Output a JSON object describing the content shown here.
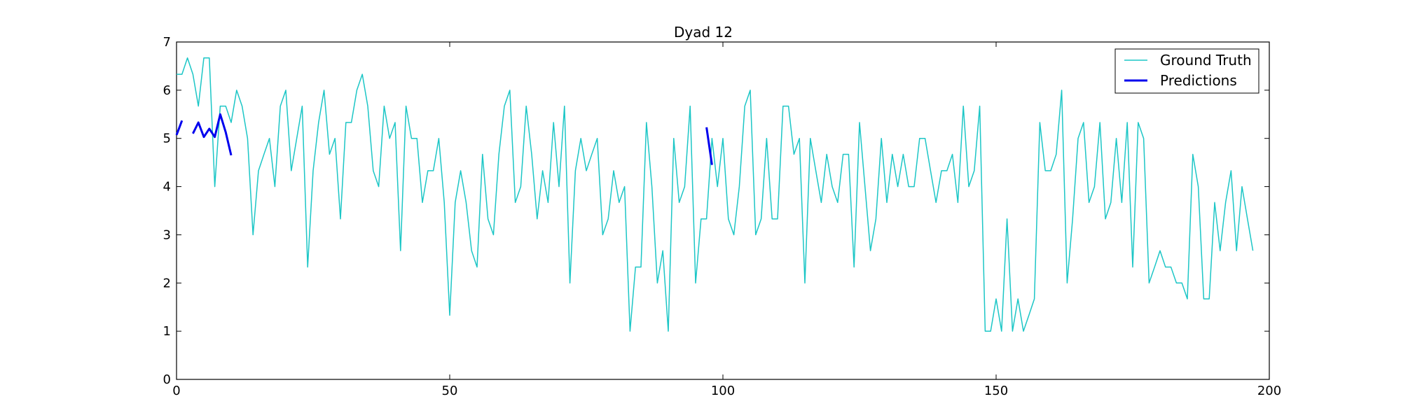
{
  "chart_data": {
    "type": "line",
    "title": "Dyad 12",
    "xlabel": "",
    "ylabel": "",
    "xlim": [
      0,
      200
    ],
    "ylim": [
      0,
      7
    ],
    "x_ticks": [
      0,
      50,
      100,
      150,
      200
    ],
    "y_ticks": [
      0,
      1,
      2,
      3,
      4,
      5,
      6,
      7
    ],
    "grid": false,
    "legend_position": "top-right",
    "series": [
      {
        "name": "Ground Truth",
        "color": "#1cc6c6",
        "line_width": "thin",
        "x": [
          0,
          1,
          2,
          3,
          4,
          5,
          6,
          7,
          8,
          9,
          10,
          11,
          12,
          13,
          14,
          15,
          16,
          17,
          18,
          19,
          20,
          21,
          22,
          23,
          24,
          25,
          26,
          27,
          28,
          29,
          30,
          31,
          32,
          33,
          34,
          35,
          36,
          37,
          38,
          39,
          40,
          41,
          42,
          43,
          44,
          45,
          46,
          47,
          48,
          49,
          50,
          51,
          52,
          53,
          54,
          55,
          56,
          57,
          58,
          59,
          60,
          61,
          62,
          63,
          64,
          65,
          66,
          67,
          68,
          69,
          70,
          71,
          72,
          73,
          74,
          75,
          76,
          77,
          78,
          79,
          80,
          81,
          82,
          83,
          84,
          85,
          86,
          87,
          88,
          89,
          90,
          91,
          92,
          93,
          94,
          95,
          96,
          97,
          98,
          99,
          100,
          101,
          102,
          103,
          104,
          105,
          106,
          107,
          108,
          109,
          110,
          111,
          112,
          113,
          114,
          115,
          116,
          117,
          118,
          119,
          120,
          121,
          122,
          123,
          124,
          125,
          126,
          127,
          128,
          129,
          130,
          131,
          132,
          133,
          134,
          135,
          136,
          137,
          138,
          139,
          140,
          141,
          142,
          143,
          144,
          145,
          146,
          147,
          148,
          149,
          150,
          151,
          152,
          153,
          154,
          155,
          156,
          157,
          158,
          159,
          160,
          161,
          162,
          163,
          164,
          165,
          166,
          167,
          168,
          169,
          170,
          171,
          172,
          173,
          174,
          175,
          176,
          177,
          178,
          179,
          180,
          181,
          182,
          183,
          184,
          185,
          186,
          187,
          188,
          189,
          190,
          191,
          192,
          193,
          194,
          195,
          196,
          197
        ],
        "y": [
          6.33,
          6.33,
          6.67,
          6.33,
          5.67,
          6.67,
          6.67,
          4.0,
          5.67,
          5.67,
          5.33,
          6.0,
          5.67,
          5.0,
          3.0,
          4.33,
          4.67,
          5.0,
          4.0,
          5.67,
          6.0,
          4.33,
          5.0,
          5.67,
          2.33,
          4.33,
          5.33,
          6.0,
          4.67,
          5.0,
          3.33,
          5.33,
          5.33,
          6.0,
          6.33,
          5.67,
          4.33,
          4.0,
          5.67,
          5.0,
          5.33,
          2.67,
          5.67,
          5.0,
          5.0,
          3.67,
          4.33,
          4.33,
          5.0,
          3.67,
          1.33,
          3.67,
          4.33,
          3.67,
          2.67,
          2.33,
          4.67,
          3.33,
          3.0,
          4.67,
          5.67,
          6.0,
          3.67,
          4.0,
          5.67,
          4.67,
          3.33,
          4.33,
          3.67,
          5.33,
          4.0,
          5.67,
          2.0,
          4.33,
          5.0,
          4.33,
          4.67,
          5.0,
          3.0,
          3.33,
          4.33,
          3.67,
          4.0,
          1.0,
          2.33,
          2.33,
          5.33,
          4.0,
          2.0,
          2.67,
          1.0,
          5.0,
          3.67,
          4.0,
          5.67,
          2.0,
          3.33,
          3.33,
          5.0,
          4.0,
          5.0,
          3.33,
          3.0,
          4.0,
          5.67,
          6.0,
          3.0,
          3.33,
          5.0,
          3.33,
          3.33,
          5.67,
          5.67,
          4.67,
          5.0,
          2.0,
          5.0,
          4.33,
          3.67,
          4.67,
          4.0,
          3.67,
          4.67,
          4.67,
          2.33,
          5.33,
          4.0,
          2.67,
          3.33,
          5.0,
          3.67,
          4.67,
          4.0,
          4.67,
          4.0,
          4.0,
          5.0,
          5.0,
          4.33,
          3.67,
          4.33,
          4.33,
          4.67,
          3.67,
          5.67,
          4.0,
          4.33,
          5.67,
          1.0,
          1.0,
          1.67,
          1.0,
          3.33,
          1.0,
          1.67,
          1.0,
          1.33,
          1.67,
          5.33,
          4.33,
          4.33,
          4.67,
          6.0,
          2.0,
          3.33,
          5.0,
          5.33,
          3.67,
          4.0,
          5.33,
          3.33,
          3.67,
          5.0,
          3.67,
          5.33,
          2.33,
          5.33,
          5.0,
          2.0,
          2.33,
          2.67,
          2.33,
          2.33,
          2.0,
          2.0,
          1.67,
          4.67,
          4.0,
          1.67,
          1.67,
          3.67,
          2.67,
          3.67,
          4.33,
          2.67,
          4.0,
          3.33,
          2.67
        ]
      },
      {
        "name": "Predictions",
        "color": "#0000ee",
        "line_width": "thick",
        "segments": [
          {
            "x": [
              0,
              1
            ],
            "y": [
              5.07,
              5.37
            ]
          },
          {
            "x": [
              3,
              4,
              5,
              6,
              7,
              8,
              9,
              10
            ],
            "y": [
              5.1,
              5.33,
              5.03,
              5.2,
              5.03,
              5.5,
              5.13,
              4.65
            ]
          },
          {
            "x": [
              97,
              98
            ],
            "y": [
              5.23,
              4.45
            ]
          }
        ]
      }
    ]
  }
}
